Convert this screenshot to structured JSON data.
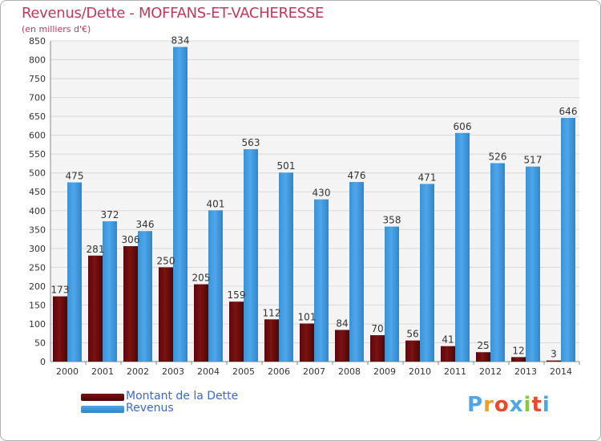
{
  "title": "Revenus/Dette - MOFFANS-ET-VACHERESSE",
  "subtitle": "(en milliers d'€)",
  "colors": {
    "dette": "#7a1212",
    "revenus": "#4da6e8",
    "title": "#c0395a",
    "legend_text": "#3a67d8"
  },
  "legend": {
    "dette_label": "Montant de la Dette",
    "revenus_label": "Revenus"
  },
  "logo": {
    "text": "Proxiti"
  },
  "chart_data": {
    "type": "bar",
    "title": "Revenus/Dette - MOFFANS-ET-VACHERESSE",
    "ylabel": "(en milliers d'€)",
    "xlabel": "",
    "ylim": [
      0,
      850
    ],
    "yticks": [
      0,
      50,
      100,
      150,
      200,
      250,
      300,
      350,
      400,
      450,
      500,
      550,
      600,
      650,
      700,
      750,
      800,
      850
    ],
    "grid": true,
    "legend_position": "bottom-left",
    "categories": [
      "2000",
      "2001",
      "2002",
      "2003",
      "2004",
      "2005",
      "2006",
      "2007",
      "2008",
      "2009",
      "2010",
      "2011",
      "2012",
      "2013",
      "2014"
    ],
    "series": [
      {
        "name": "Montant de la Dette",
        "values": [
          173,
          281,
          306,
          250,
          205,
          159,
          112,
          101,
          84,
          70,
          56,
          41,
          25,
          12,
          3
        ]
      },
      {
        "name": "Revenus",
        "values": [
          475,
          372,
          346,
          834,
          401,
          563,
          501,
          430,
          476,
          358,
          471,
          606,
          526,
          517,
          646
        ]
      }
    ]
  }
}
